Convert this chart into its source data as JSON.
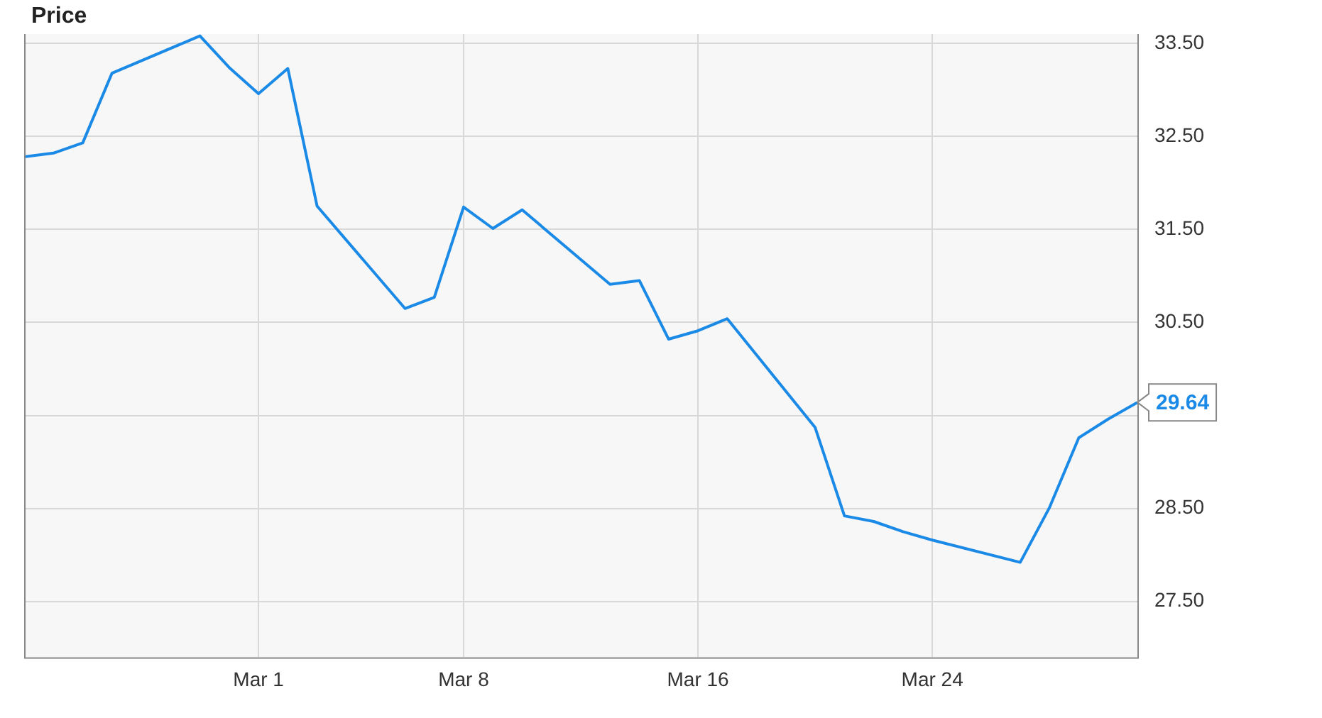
{
  "chart_data": {
    "type": "line",
    "title": "Price",
    "x": [
      "--02-21",
      "--02-22",
      "--02-23",
      "--02-24",
      "--02-27",
      "--02-28",
      "--03-01",
      "--03-02",
      "--03-03",
      "--03-06",
      "--03-07",
      "--03-08",
      "--03-09",
      "--03-10",
      "--03-13",
      "--03-14",
      "--03-15",
      "--03-16",
      "--03-17",
      "--03-20",
      "--03-21",
      "--03-22",
      "--03-23",
      "--03-24",
      "--03-27",
      "--03-28",
      "--03-29",
      "--03-30",
      "--03-31"
    ],
    "series": [
      {
        "color": "#1a8ae6",
        "values": [
          32.28,
          32.32,
          32.43,
          33.18,
          33.58,
          33.24,
          32.96,
          33.23,
          31.75,
          30.65,
          30.77,
          31.74,
          31.51,
          31.71,
          30.91,
          30.95,
          30.32,
          30.41,
          30.54,
          29.37,
          28.42,
          28.36,
          28.25,
          28.16,
          27.92,
          28.51,
          29.26,
          29.46,
          29.64
        ]
      }
    ],
    "xlim": [
      "--02-21",
      "--03-31"
    ],
    "xticks": [
      {
        "value": "--03-01",
        "label": "Mar 1"
      },
      {
        "value": "--03-08",
        "label": "Mar 8"
      },
      {
        "value": "--03-16",
        "label": "Mar 16"
      },
      {
        "value": "--03-24",
        "label": "Mar 24"
      }
    ],
    "ylim": [
      26.9,
      33.6
    ],
    "yticks": [
      {
        "value": 27.5,
        "label": "27.50"
      },
      {
        "value": 28.5,
        "label": "28.50"
      },
      {
        "value": 29.5,
        "label": null
      },
      {
        "value": 30.5,
        "label": "30.50"
      },
      {
        "value": 31.5,
        "label": "31.50"
      },
      {
        "value": 32.5,
        "label": "32.50"
      },
      {
        "value": 33.5,
        "label": "33.50"
      }
    ],
    "grid": true,
    "legend": false,
    "marker": "none",
    "line_style": "solid",
    "annotations": [
      {
        "text": "29.64",
        "x": "--03-31",
        "y": 29.64
      }
    ]
  }
}
